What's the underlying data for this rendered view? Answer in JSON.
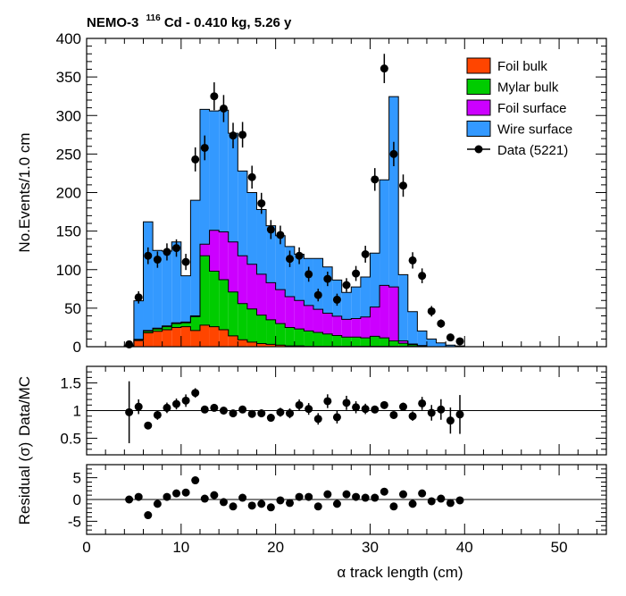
{
  "title": {
    "prefix": "NEMO-3",
    "isotope_mass": "116",
    "suffix": "Cd - 0.410 kg, 5.26 y"
  },
  "chart_data": [
    {
      "type": "bar",
      "stacked": true,
      "ylabel": "No.Events/1.0 cm",
      "ylim": [
        0,
        400
      ],
      "yticks": [
        0,
        50,
        100,
        150,
        200,
        250,
        300,
        350,
        400
      ],
      "xlim": [
        0,
        55
      ],
      "x_bin_low_edges": [
        4,
        5,
        6,
        7,
        8,
        9,
        10,
        11,
        12,
        13,
        14,
        15,
        16,
        17,
        18,
        19,
        20,
        21,
        22,
        23,
        24,
        25,
        26,
        27,
        28,
        29,
        30,
        31,
        32,
        33,
        34,
        35,
        36,
        37,
        38,
        39,
        40
      ],
      "series": [
        {
          "name": "Foil bulk",
          "color": "#ff4500",
          "values": [
            1,
            8,
            18,
            20,
            22,
            25,
            26,
            21,
            28,
            26,
            22,
            14,
            9,
            6,
            4,
            3,
            2,
            1,
            1,
            0.5,
            0.5,
            0.5,
            0.5,
            0.5,
            0.5,
            0.5,
            0.5,
            0.5,
            0.5,
            0.5,
            0.5,
            0,
            0,
            0,
            0,
            0,
            0
          ]
        },
        {
          "name": "Mylar bulk",
          "color": "#00cc00",
          "values": [
            0,
            1,
            2,
            3,
            4,
            5,
            5,
            18,
            90,
            72,
            65,
            57,
            47,
            43,
            37,
            32,
            28,
            24,
            22,
            20,
            18,
            16,
            14,
            12,
            12,
            11,
            13,
            11,
            7,
            4,
            2,
            1,
            0,
            0,
            0,
            0,
            0
          ]
        },
        {
          "name": "Foil surface",
          "color": "#cc00ff",
          "values": [
            0,
            0.5,
            1,
            1,
            1,
            1,
            1,
            1,
            15,
            53,
            62,
            65,
            62,
            58,
            53,
            48,
            44,
            40,
            37,
            33,
            30,
            27,
            25,
            23,
            24,
            27,
            38,
            68,
            70,
            3,
            1,
            0.5,
            0,
            0,
            0,
            0,
            0
          ]
        },
        {
          "name": "Wire surface",
          "color": "#3399ff",
          "values": [
            1,
            50,
            141,
            101,
            97,
            105,
            60,
            150,
            175,
            155,
            158,
            141,
            110,
            93,
            84,
            74,
            70,
            65,
            60,
            61,
            66,
            60,
            47,
            35,
            41,
            52,
            70,
            137,
            247,
            86,
            42,
            19,
            10,
            5,
            2,
            1,
            0
          ]
        }
      ],
      "data_points": {
        "name": "Data (5221)",
        "x": [
          4.5,
          5.5,
          6.5,
          7.5,
          8.5,
          9.5,
          10.5,
          11.5,
          12.5,
          13.5,
          14.5,
          15.5,
          16.5,
          17.5,
          18.5,
          19.5,
          20.5,
          21.5,
          22.5,
          23.5,
          24.5,
          25.5,
          26.5,
          27.5,
          28.5,
          29.5,
          30.5,
          31.5,
          32.5,
          33.5,
          34.5,
          35.5,
          36.5,
          37.5,
          38.5,
          39.5
        ],
        "y": [
          3,
          64,
          118,
          113,
          123,
          128,
          110,
          243,
          258,
          325,
          309,
          274,
          275,
          220,
          186,
          152,
          145,
          114,
          118,
          94,
          67,
          88,
          61,
          80,
          95,
          120,
          217,
          361,
          250,
          209,
          112,
          92,
          46,
          30,
          12,
          7
        ]
      },
      "legend_position": "top-right"
    },
    {
      "type": "scatter",
      "ylabel": "Data/MC",
      "ylim": [
        0.2,
        1.8
      ],
      "yticks": [
        0.5,
        1,
        1.5
      ],
      "xlim": [
        0,
        55
      ],
      "reference_line": 1,
      "x": [
        4.5,
        5.5,
        6.5,
        7.5,
        8.5,
        9.5,
        10.5,
        11.5,
        12.5,
        13.5,
        14.5,
        15.5,
        16.5,
        17.5,
        18.5,
        19.5,
        20.5,
        21.5,
        22.5,
        23.5,
        24.5,
        25.5,
        26.5,
        27.5,
        28.5,
        29.5,
        30.5,
        31.5,
        32.5,
        33.5,
        34.5,
        35.5,
        36.5,
        37.5,
        38.5,
        39.5
      ],
      "y": [
        0.97,
        1.07,
        0.73,
        0.92,
        1.05,
        1.12,
        1.18,
        1.32,
        1.02,
        1.05,
        1.0,
        0.95,
        1.02,
        0.94,
        0.95,
        0.87,
        0.97,
        0.95,
        1.1,
        1.03,
        0.85,
        1.17,
        0.88,
        1.14,
        1.06,
        1.03,
        1.02,
        1.1,
        0.92,
        1.07,
        0.9,
        1.13,
        0.96,
        1.02,
        0.82,
        0.93
      ]
    },
    {
      "type": "scatter",
      "ylabel": "Residual (σ)",
      "ylim": [
        -8,
        8
      ],
      "yticks": [
        -5,
        0,
        5
      ],
      "xlim": [
        0,
        55
      ],
      "xticks": [
        0,
        10,
        20,
        30,
        40,
        50
      ],
      "xlabel": "α track length (cm)",
      "reference_line": 0,
      "x": [
        4.5,
        5.5,
        6.5,
        7.5,
        8.5,
        9.5,
        10.5,
        11.5,
        12.5,
        13.5,
        14.5,
        15.5,
        16.5,
        17.5,
        18.5,
        19.5,
        20.5,
        21.5,
        22.5,
        23.5,
        24.5,
        25.5,
        26.5,
        27.5,
        28.5,
        29.5,
        30.5,
        31.5,
        32.5,
        33.5,
        34.5,
        35.5,
        36.5,
        37.5,
        38.5,
        39.5
      ],
      "y": [
        0,
        0.6,
        -3.6,
        -1.0,
        0.6,
        1.4,
        1.6,
        4.4,
        0.2,
        1.0,
        -0.6,
        -1.6,
        0.4,
        -1.4,
        -1.0,
        -1.8,
        -0.2,
        -0.8,
        0.6,
        0.6,
        -1.6,
        1.2,
        -1.0,
        1.2,
        0.6,
        0.4,
        0.4,
        1.8,
        -1.6,
        1.2,
        -1.0,
        1.4,
        -0.4,
        0.2,
        -0.8,
        -0.2
      ]
    }
  ]
}
